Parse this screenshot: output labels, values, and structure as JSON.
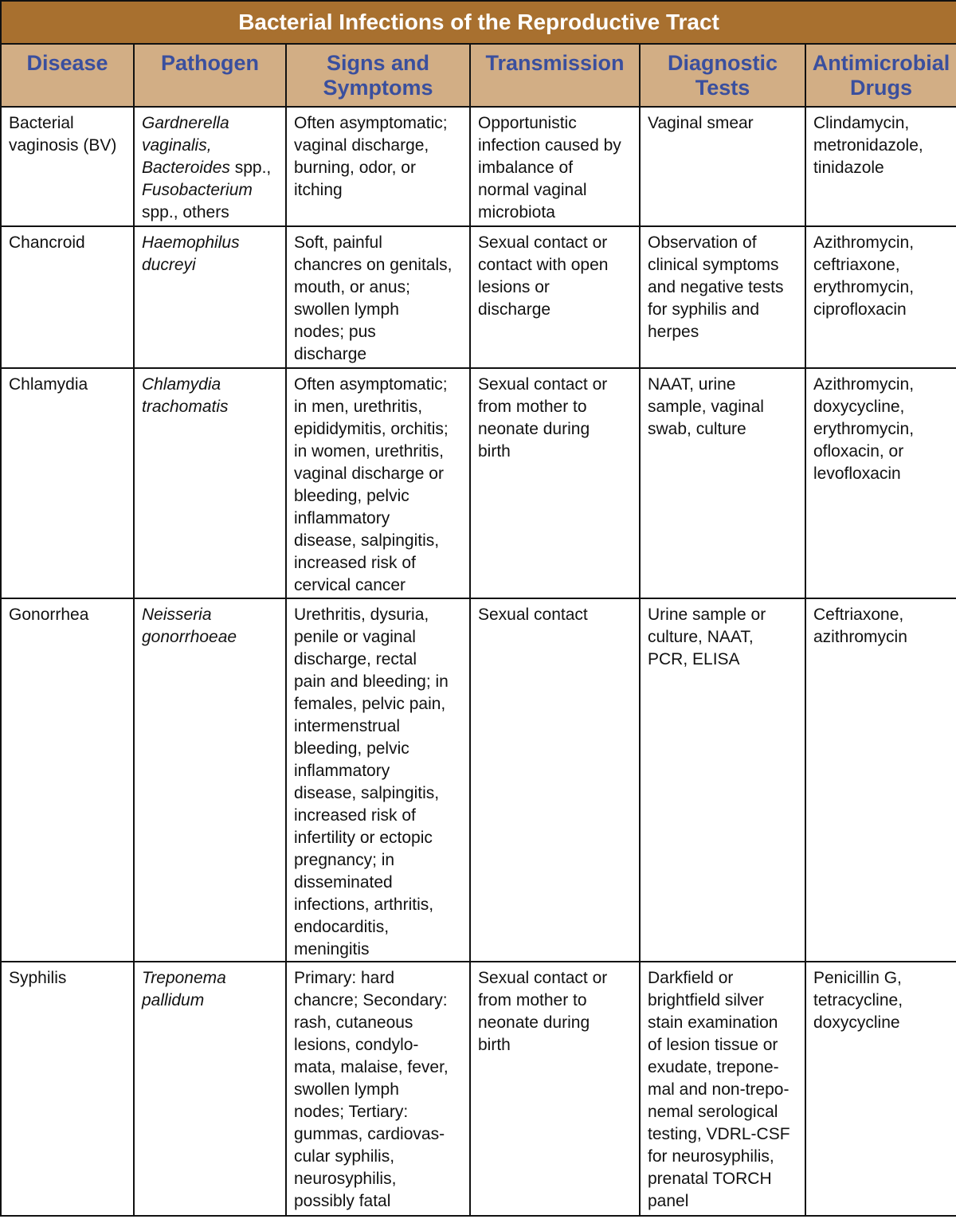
{
  "title": "Bacterial Infections of the Reproductive Tract",
  "colors": {
    "title_bg": "#a8702f",
    "header_bg": "#d2ae85",
    "header_text": "#3a4f9e"
  },
  "columns": [
    "Disease",
    "Pathogen",
    "Signs and\nSymptoms",
    "Transmission",
    "Diagnostic\nTests",
    "Antimicrobial\nDrugs"
  ],
  "rows": [
    {
      "disease": "Bacterial\nvaginosis (BV)",
      "pathogen": [
        {
          "text": "Gardnerella\nvaginalis,\nBacteroides",
          "italic": true
        },
        {
          "text": " spp.,\n",
          "italic": false
        },
        {
          "text": "Fusobacterium",
          "italic": true
        },
        {
          "text": "\nspp., others",
          "italic": false
        }
      ],
      "signs": "Often asymptomatic;\nvaginal discharge,\nburning, odor, or\nitching",
      "transmission": "Opportunistic\ninfection caused by\nimbalance of\nnormal vaginal\nmicrobiota",
      "tests": "Vaginal smear",
      "drugs": "Clindamycin,\nmetronidazole,\ntinidazole"
    },
    {
      "disease": "Chancroid",
      "pathogen": [
        {
          "text": "Haemophilus\nducreyi",
          "italic": true
        }
      ],
      "signs": "Soft, painful\nchancres on genitals,\nmouth, or anus;\nswollen lymph\nnodes; pus\ndischarge",
      "transmission": "Sexual contact or\ncontact with open\nlesions or\ndischarge",
      "tests": "Observation of\nclinical symptoms\nand negative tests\nfor syphilis and\nherpes",
      "drugs": "Azithromycin,\nceftriaxone,\nerythromycin,\nciprofloxacin"
    },
    {
      "disease": "Chlamydia",
      "pathogen": [
        {
          "text": "Chlamydia\ntrachomatis",
          "italic": true
        }
      ],
      "signs": "Often asymptomatic;\nin men, urethritis,\nepididymitis, orchitis;\nin women, urethritis,\nvaginal discharge or\nbleeding, pelvic\ninflammatory\ndisease, salpingitis,\nincreased risk of\ncervical cancer",
      "transmission": "Sexual contact or\nfrom mother to\nneonate during\nbirth",
      "tests": "NAAT, urine\nsample, vaginal\nswab, culture",
      "drugs": "Azithromycin,\ndoxycycline,\nerythromycin,\nofloxacin, or\nlevofloxacin"
    },
    {
      "disease": "Gonorrhea",
      "pathogen": [
        {
          "text": "Neisseria\ngonorrhoeae",
          "italic": true
        }
      ],
      "signs": "Urethritis, dysuria,\npenile or vaginal\ndischarge, rectal\npain and bleeding; in\nfemales, pelvic pain,\nintermenstrual\nbleeding, pelvic\ninflammatory\ndisease, salpingitis,\nincreased risk of\ninfertility or ectopic\npregnancy; in\ndisseminated\ninfections, arthritis,\nendocarditis,\nmeningitis",
      "transmission": "Sexual contact",
      "tests": "Urine sample or\nculture, NAAT,\nPCR, ELISA",
      "drugs": "Ceftriaxone,\nazithromycin"
    },
    {
      "disease": "Syphilis",
      "pathogen": [
        {
          "text": "Treponema\npallidum",
          "italic": true
        }
      ],
      "signs": "Primary: hard\nchancre; Secondary:\nrash, cutaneous\nlesions, condylo-\nmata, malaise, fever,\nswollen lymph\nnodes; Tertiary:\ngummas, cardiovas-\ncular syphilis,\nneurosyphilis,\npossibly fatal",
      "transmission": "Sexual contact or\nfrom mother to\nneonate during\nbirth",
      "tests": "Darkfield or\nbrightfield silver\nstain examination\nof lesion tissue or\nexudate, trepone-\nmal and non-trepo-\nnemal serological\ntesting, VDRL-CSF\nfor neurosyphilis,\nprenatal TORCH\npanel",
      "drugs": "Penicillin G,\ntetracycline,\ndoxycycline"
    }
  ]
}
